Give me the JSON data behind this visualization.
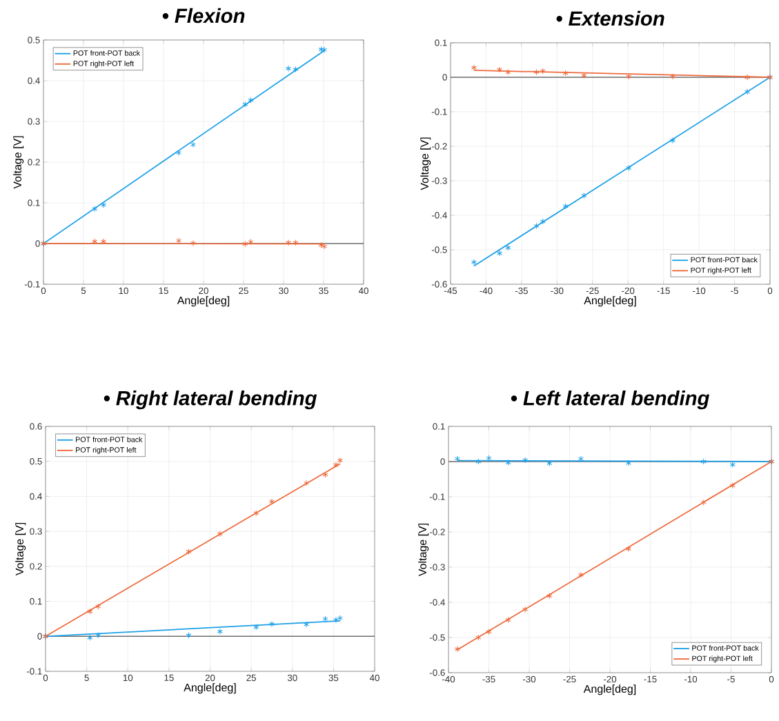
{
  "chart_data": [
    {
      "type": "scatter",
      "title": "•   Flexion",
      "xlabel": "Angle[deg]",
      "ylabel": "Voltage [V]",
      "xlim": [
        0,
        40
      ],
      "ylim": [
        -0.1,
        0.5
      ],
      "xticks": [
        0,
        5,
        10,
        15,
        20,
        25,
        30,
        35,
        40
      ],
      "yticks": [
        -0.1,
        0,
        0.1,
        0.2,
        0.3,
        0.4,
        0.5
      ],
      "grid": true,
      "legend": "top left",
      "ref_lines": [
        {
          "axis": "y",
          "value": 0,
          "color": "#6e6e6e"
        }
      ],
      "series": [
        {
          "type": "line",
          "name": "POT front-POT back",
          "color": "#1ca0e8",
          "x": [
            0,
            35.1
          ],
          "values": [
            0,
            0.474
          ]
        },
        {
          "type": "line",
          "name": "POT right-POT left",
          "color": "#ee6a3c",
          "x": [
            0,
            35.1
          ],
          "values": [
            0,
            -0.001
          ]
        },
        {
          "marker": "cross",
          "color": "#1ca0e8",
          "x": [
            0,
            6.4,
            7.5,
            16.9,
            18.7,
            25.2,
            25.9,
            30.6,
            31.5,
            34.7,
            35.1
          ],
          "values": [
            0,
            0.085,
            0.095,
            0.223,
            0.243,
            0.342,
            0.352,
            0.43,
            0.428,
            0.477,
            0.476
          ]
        },
        {
          "marker": "cross",
          "color": "#ee6a3c",
          "x": [
            0,
            6.4,
            7.5,
            16.9,
            18.7,
            25.2,
            25.9,
            30.6,
            31.5,
            34.7,
            35.1
          ],
          "values": [
            0,
            0.005,
            0.005,
            0.007,
            0.001,
            -0.001,
            0.004,
            0.002,
            0.002,
            -0.004,
            -0.007
          ]
        }
      ]
    },
    {
      "type": "scatter",
      "title": "•   Extension",
      "xlabel": "Angle[deg]",
      "ylabel": "Voltage [V]",
      "xlim": [
        -45,
        0
      ],
      "ylim": [
        -0.6,
        0.1
      ],
      "xticks": [
        -45,
        -40,
        -35,
        -30,
        -25,
        -20,
        -15,
        -10,
        -5,
        0
      ],
      "yticks": [
        -0.6,
        -0.5,
        -0.4,
        -0.3,
        -0.2,
        -0.1,
        0,
        0.1
      ],
      "grid": true,
      "legend": "bottom right",
      "ref_lines": [
        {
          "axis": "y",
          "value": 0,
          "color": "#6e6e6e"
        }
      ],
      "series": [
        {
          "type": "line",
          "name": "POT front-POT back",
          "color": "#1ca0e8",
          "x": [
            -41.7,
            0
          ],
          "values": [
            -0.547,
            0
          ]
        },
        {
          "type": "line",
          "name": "POT right-POT left",
          "color": "#ee6a3c",
          "x": [
            -41.7,
            0
          ],
          "values": [
            0.02,
            0
          ]
        },
        {
          "marker": "cross",
          "color": "#1ca0e8",
          "x": [
            -41.7,
            -38.1,
            -36.9,
            -32.9,
            -32.0,
            -28.8,
            -26.2,
            -19.9,
            -13.7,
            -3.2,
            0
          ],
          "values": [
            -0.536,
            -0.51,
            -0.494,
            -0.431,
            -0.418,
            -0.374,
            -0.343,
            -0.263,
            -0.183,
            -0.042,
            0
          ]
        },
        {
          "marker": "cross",
          "color": "#ee6a3c",
          "x": [
            -41.7,
            -38.1,
            -36.9,
            -32.9,
            -32.0,
            -28.8,
            -26.2,
            -19.9,
            -13.7,
            -3.2,
            0
          ],
          "values": [
            0.028,
            0.022,
            0.015,
            0.015,
            0.018,
            0.012,
            0.005,
            0.002,
            0.002,
            0.0,
            0
          ]
        }
      ]
    },
    {
      "type": "scatter",
      "title": "•   Right lateral bending",
      "xlabel": "Angle[deg]",
      "ylabel": "Voltage [V]",
      "xlim": [
        0,
        40
      ],
      "ylim": [
        -0.1,
        0.6
      ],
      "xticks": [
        0,
        5,
        10,
        15,
        20,
        25,
        30,
        35,
        40
      ],
      "yticks": [
        -0.1,
        0,
        0.1,
        0.2,
        0.3,
        0.4,
        0.5,
        0.6
      ],
      "grid": true,
      "legend": "top left",
      "ref_lines": [
        {
          "axis": "y",
          "value": 0,
          "color": "#6e6e6e"
        }
      ],
      "series": [
        {
          "type": "line",
          "name": "POT front-POT back",
          "color": "#1ca0e8",
          "x": [
            0,
            35.8
          ],
          "values": [
            0,
            0.044
          ]
        },
        {
          "type": "line",
          "name": "POT right-POT left",
          "color": "#ee6a3c",
          "x": [
            0,
            35.8
          ],
          "values": [
            0,
            0.493
          ]
        },
        {
          "marker": "cross",
          "color": "#1ca0e8",
          "x": [
            0,
            5.4,
            6.4,
            17.4,
            21.2,
            25.6,
            27.5,
            31.7,
            34.0,
            35.3,
            35.8
          ],
          "values": [
            0,
            -0.004,
            0.003,
            0.003,
            0.014,
            0.026,
            0.035,
            0.034,
            0.05,
            0.047,
            0.052
          ]
        },
        {
          "marker": "cross",
          "color": "#ee6a3c",
          "x": [
            0,
            5.4,
            6.4,
            17.4,
            21.2,
            25.6,
            27.5,
            31.7,
            34.0,
            35.3,
            35.8
          ],
          "values": [
            0,
            0.071,
            0.085,
            0.242,
            0.293,
            0.352,
            0.385,
            0.438,
            0.462,
            0.49,
            0.503
          ]
        }
      ]
    },
    {
      "type": "scatter",
      "title": "•   Left lateral bending",
      "xlabel": "Angle[deg]",
      "ylabel": "Voltage [V]",
      "xlim": [
        -40,
        0
      ],
      "ylim": [
        -0.6,
        0.1
      ],
      "xticks": [
        -40,
        -35,
        -30,
        -25,
        -20,
        -15,
        -10,
        -5,
        0
      ],
      "yticks": [
        -0.6,
        -0.5,
        -0.4,
        -0.3,
        -0.2,
        -0.1,
        0,
        0.1
      ],
      "grid": true,
      "legend": "bottom right",
      "ref_lines": [
        {
          "axis": "y",
          "value": 0,
          "color": "#6e6e6e"
        }
      ],
      "series": [
        {
          "type": "line",
          "name": "POT front-POT back",
          "color": "#1ca0e8",
          "x": [
            -38.9,
            0
          ],
          "values": [
            0.003,
            0
          ]
        },
        {
          "type": "line",
          "name": "POT right-POT left",
          "color": "#ee6a3c",
          "x": [
            -38.9,
            0
          ],
          "values": [
            -0.535,
            0
          ]
        },
        {
          "marker": "cross",
          "color": "#1ca0e8",
          "x": [
            -38.9,
            -36.3,
            -35.0,
            -32.6,
            -30.5,
            -27.5,
            -23.6,
            -17.7,
            -8.4,
            -4.8,
            0
          ],
          "values": [
            0.008,
            0.0,
            0.01,
            -0.003,
            0.004,
            -0.005,
            0.008,
            -0.004,
            0.0,
            -0.009,
            0
          ]
        },
        {
          "marker": "cross",
          "color": "#ee6a3c",
          "x": [
            -38.9,
            -36.3,
            -35.0,
            -32.6,
            -30.5,
            -27.5,
            -23.6,
            -17.7,
            -8.4,
            -4.8,
            0
          ],
          "values": [
            -0.533,
            -0.5,
            -0.484,
            -0.45,
            -0.42,
            -0.382,
            -0.322,
            -0.248,
            -0.116,
            -0.068,
            0
          ]
        }
      ]
    }
  ]
}
